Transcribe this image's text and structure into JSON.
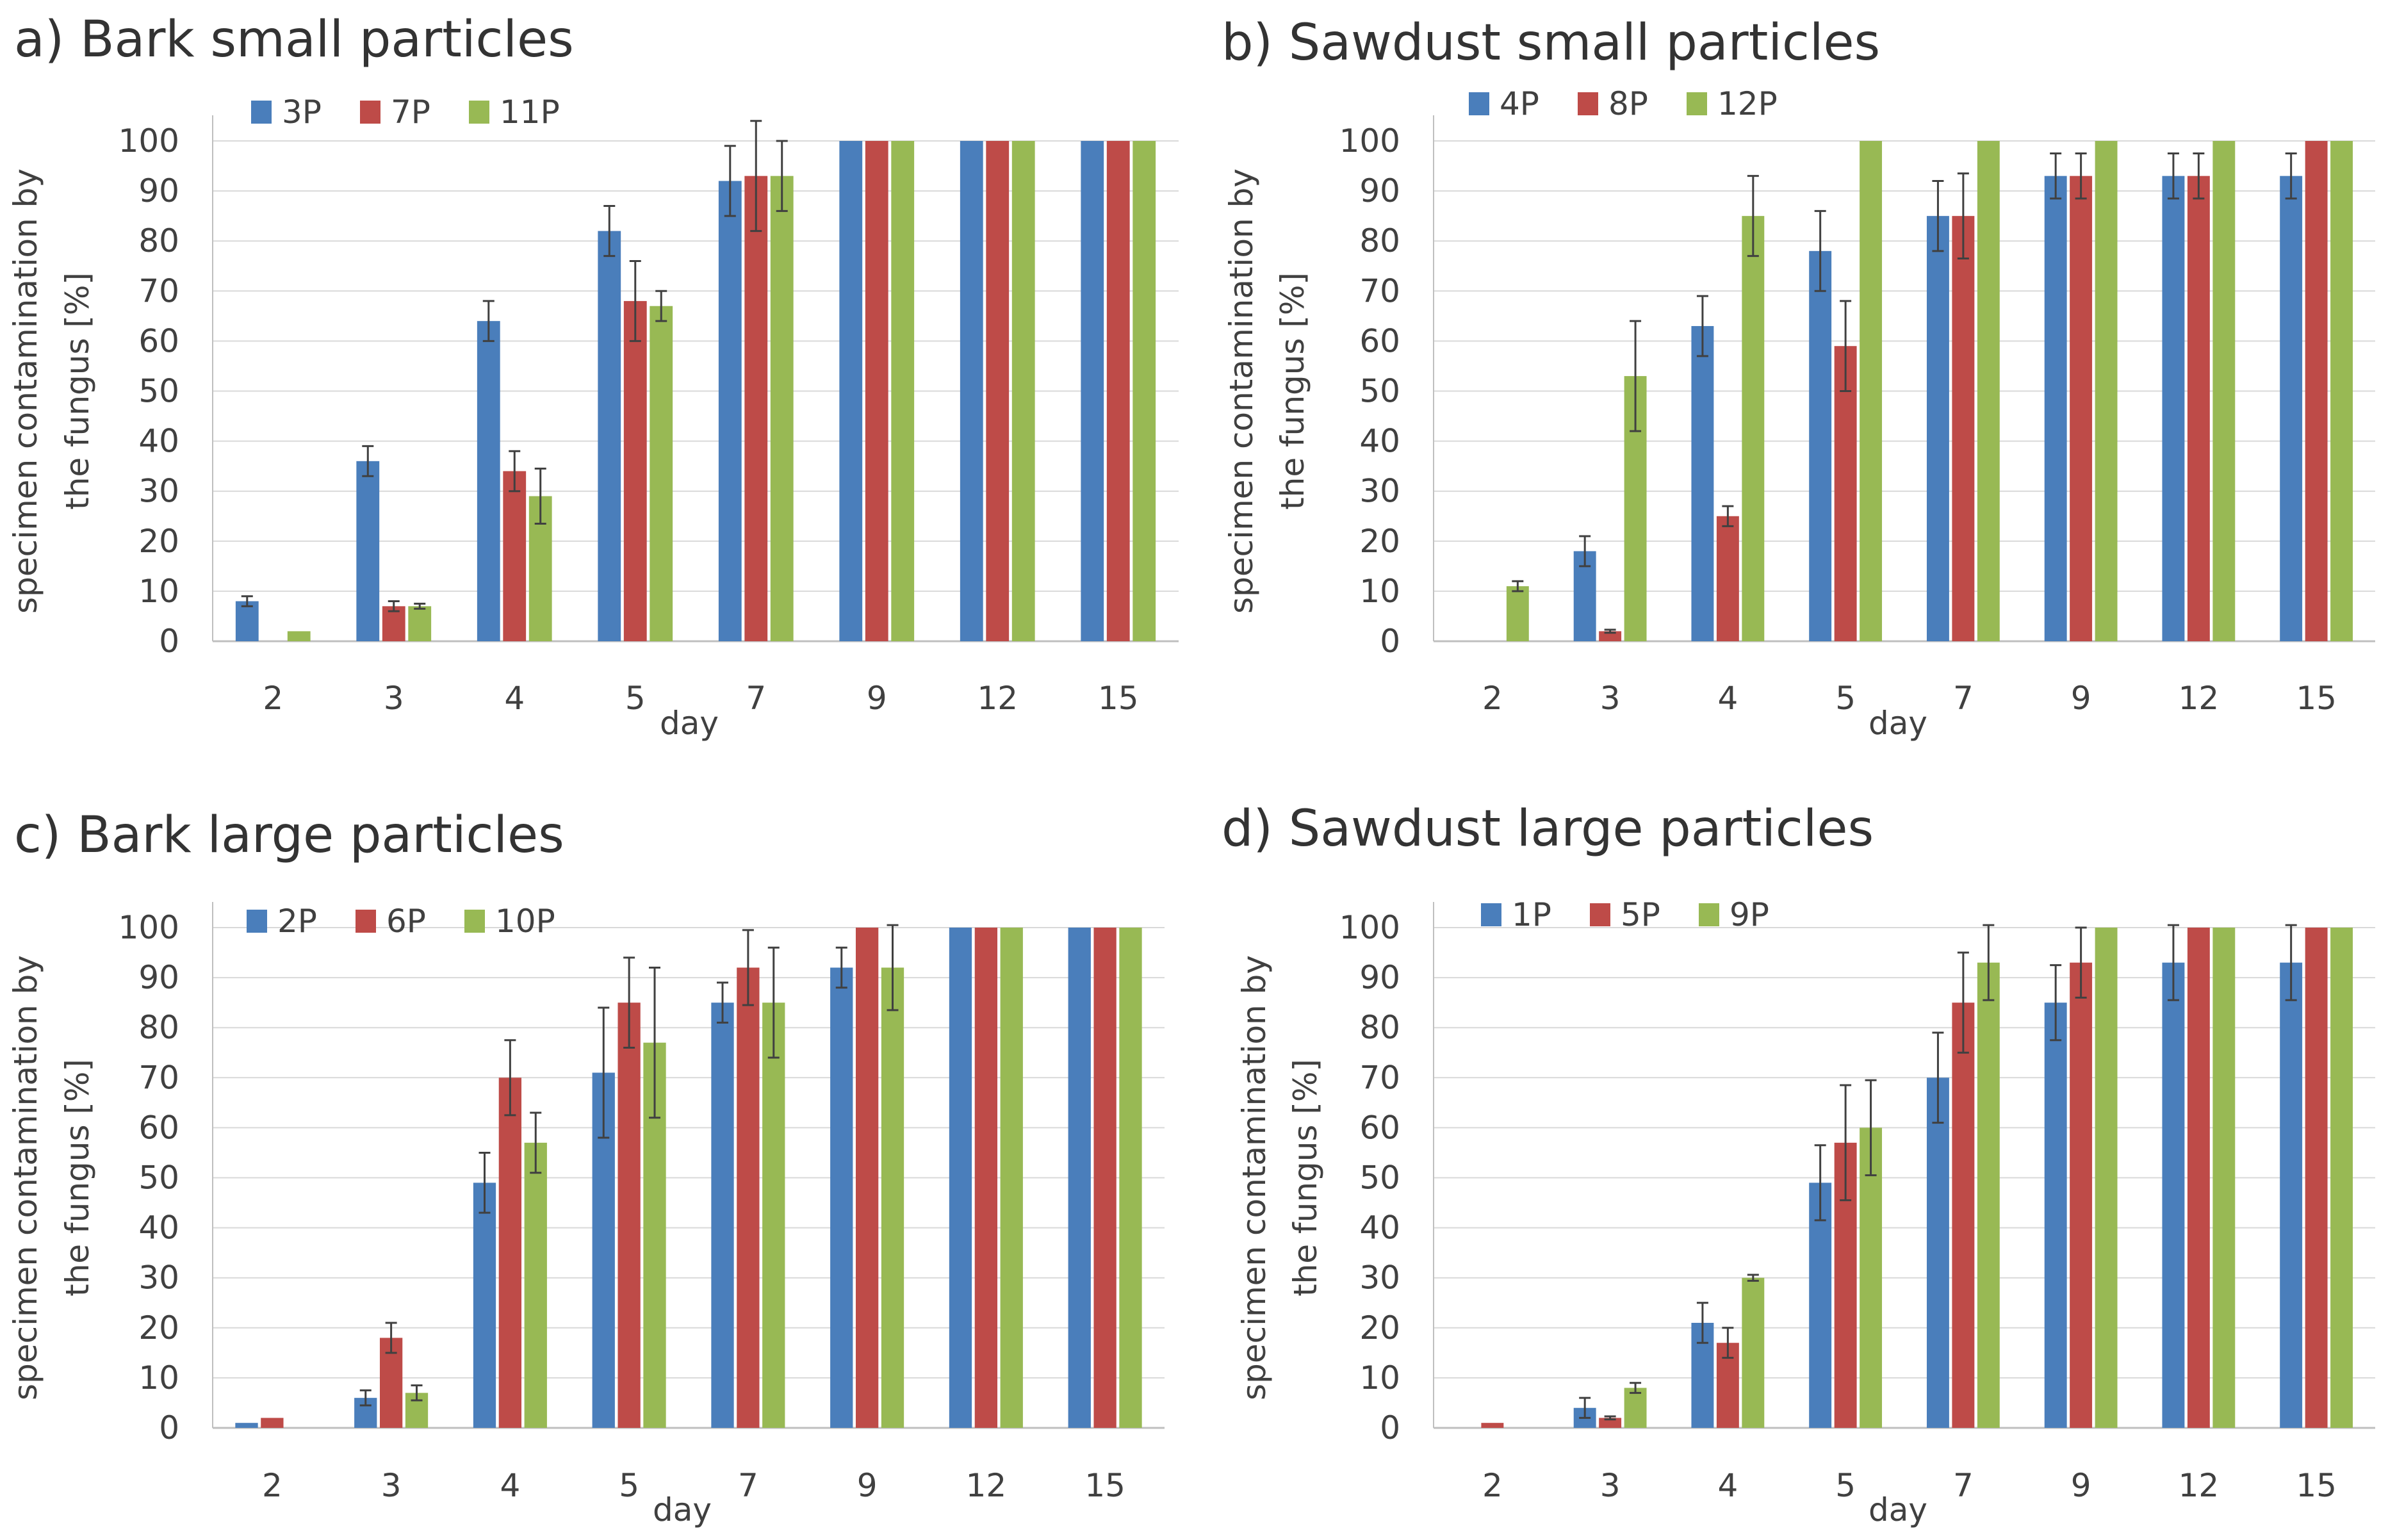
{
  "colors": {
    "blue": "#4a7ebb",
    "red": "#be4b48",
    "green": "#98b954",
    "grid": "#d9d9d9",
    "axis": "#bfbfbf",
    "errorbar": "#404040"
  },
  "chart_data": [
    {
      "type": "bar",
      "title": "a)  Bark small particles",
      "xlabel": "day",
      "ylabel": [
        "specimen contamination by",
        "the fungus [%]"
      ],
      "ylim": [
        0,
        100
      ],
      "yticks": [
        0,
        10,
        20,
        30,
        40,
        50,
        60,
        70,
        80,
        90,
        100
      ],
      "grid": true,
      "legend": "top-left",
      "categories": [
        "2",
        "3",
        "4",
        "5",
        "7",
        "9",
        "12",
        "15"
      ],
      "series": [
        {
          "name": "3P",
          "color": "#4a7ebb",
          "values": [
            8,
            36,
            64,
            82,
            92,
            100,
            100,
            100
          ],
          "errors": [
            1,
            3,
            4,
            5,
            7,
            0,
            0,
            0
          ]
        },
        {
          "name": "7P",
          "color": "#be4b48",
          "values": [
            0,
            7,
            34,
            68,
            93,
            100,
            100,
            100
          ],
          "errors": [
            0,
            1,
            4,
            8,
            11,
            0,
            0,
            0
          ]
        },
        {
          "name": "11P",
          "color": "#98b954",
          "values": [
            2,
            7,
            29,
            67,
            93,
            100,
            100,
            100
          ],
          "errors": [
            0,
            0.5,
            5.5,
            3,
            7,
            0,
            0,
            0
          ]
        }
      ]
    },
    {
      "type": "bar",
      "title": "b) Sawdust small particles",
      "xlabel": "day",
      "ylabel": [
        "specimen contamination by",
        "the fungus [%]"
      ],
      "ylim": [
        0,
        100
      ],
      "yticks": [
        0,
        10,
        20,
        30,
        40,
        50,
        60,
        70,
        80,
        90,
        100
      ],
      "grid": true,
      "legend": "top-left",
      "categories": [
        "2",
        "3",
        "4",
        "5",
        "7",
        "9",
        "12",
        "15"
      ],
      "series": [
        {
          "name": "4P",
          "color": "#4a7ebb",
          "values": [
            0,
            18,
            63,
            78,
            85,
            93,
            93,
            93
          ],
          "errors": [
            0,
            3,
            6,
            8,
            7,
            4.5,
            4.5,
            4.5
          ]
        },
        {
          "name": "8P",
          "color": "#be4b48",
          "values": [
            0,
            2,
            25,
            59,
            85,
            93,
            93,
            100
          ],
          "errors": [
            0,
            0.3,
            2,
            9,
            8.5,
            4.5,
            4.5,
            0
          ]
        },
        {
          "name": "12P",
          "color": "#98b954",
          "values": [
            11,
            53,
            85,
            100,
            100,
            100,
            100,
            100
          ],
          "errors": [
            1,
            11,
            8,
            0,
            0,
            0,
            0,
            0
          ]
        }
      ]
    },
    {
      "type": "bar",
      "title": "c) Bark large particles",
      "xlabel": "day",
      "ylabel": [
        "specimen contamination by",
        "the fungus [%]"
      ],
      "ylim": [
        0,
        100
      ],
      "yticks": [
        0,
        10,
        20,
        30,
        40,
        50,
        60,
        70,
        80,
        90,
        100
      ],
      "grid": true,
      "legend": "top-left",
      "categories": [
        "2",
        "3",
        "4",
        "5",
        "7",
        "9",
        "12",
        "15"
      ],
      "series": [
        {
          "name": "2P",
          "color": "#4a7ebb",
          "values": [
            1,
            6,
            49,
            71,
            85,
            92,
            100,
            100
          ],
          "errors": [
            0,
            1.5,
            6,
            13,
            4,
            4,
            0,
            0
          ]
        },
        {
          "name": "6P",
          "color": "#be4b48",
          "values": [
            2,
            18,
            70,
            85,
            92,
            100,
            100,
            100
          ],
          "errors": [
            0,
            3,
            7.5,
            9,
            7.5,
            0,
            0,
            0
          ]
        },
        {
          "name": "10P",
          "color": "#98b954",
          "values": [
            0,
            7,
            57,
            77,
            85,
            92,
            100,
            100
          ],
          "errors": [
            0,
            1.5,
            6,
            15,
            11,
            8.5,
            0,
            0
          ]
        }
      ]
    },
    {
      "type": "bar",
      "title": "d) Sawdust large particles",
      "xlabel": "day",
      "ylabel": [
        "specimen contamination by",
        "the fungus [%]"
      ],
      "ylim": [
        0,
        100
      ],
      "yticks": [
        0,
        10,
        20,
        30,
        40,
        50,
        60,
        70,
        80,
        90,
        100
      ],
      "grid": true,
      "legend": "top-left",
      "categories": [
        "2",
        "3",
        "4",
        "5",
        "7",
        "9",
        "12",
        "15"
      ],
      "series": [
        {
          "name": "1P",
          "color": "#4a7ebb",
          "values": [
            0,
            4,
            21,
            49,
            70,
            85,
            93,
            93
          ],
          "errors": [
            0,
            2,
            4,
            7.5,
            9,
            7.5,
            7.5,
            7.5
          ]
        },
        {
          "name": "5P",
          "color": "#be4b48",
          "values": [
            1,
            2,
            17,
            57,
            85,
            93,
            100,
            100
          ],
          "errors": [
            0,
            0.3,
            3,
            11.5,
            10,
            7,
            0,
            0
          ]
        },
        {
          "name": "9P",
          "color": "#98b954",
          "values": [
            0,
            8,
            30,
            60,
            93,
            100,
            100,
            100
          ],
          "errors": [
            0,
            1,
            0.6,
            9.5,
            7.5,
            0,
            0,
            0
          ]
        }
      ]
    }
  ]
}
